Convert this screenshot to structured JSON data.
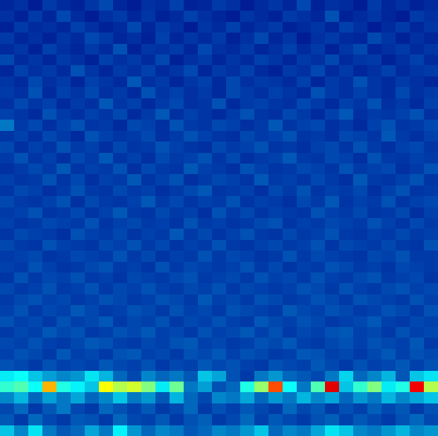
{
  "chart_data": {
    "type": "heatmap",
    "color": "Jet",
    "zlim": [
      0,
      100
    ],
    "tick_labels": false,
    "cells": [
      [
        8,
        10,
        6,
        12,
        9,
        7,
        11,
        14,
        8,
        6,
        10,
        9,
        13,
        7,
        8,
        12,
        10,
        6,
        9,
        11,
        8,
        14,
        7,
        10,
        9,
        6,
        12,
        8,
        10,
        7,
        9
      ],
      [
        10,
        7,
        12,
        8,
        14,
        9,
        6,
        10,
        12,
        8,
        11,
        7,
        9,
        13,
        10,
        8,
        6,
        11,
        9,
        7,
        12,
        10,
        8,
        15,
        7,
        9,
        11,
        8,
        6,
        12,
        10
      ],
      [
        7,
        12,
        9,
        10,
        8,
        13,
        10,
        7,
        9,
        14,
        8,
        12,
        10,
        6,
        11,
        9,
        13,
        8,
        10,
        12,
        7,
        9,
        11,
        8,
        13,
        10,
        6,
        9,
        12,
        8,
        11
      ],
      [
        12,
        8,
        10,
        7,
        11,
        9,
        14,
        12,
        8,
        10,
        7,
        13,
        8,
        11,
        9,
        12,
        7,
        10,
        14,
        8,
        11,
        6,
        10,
        12,
        9,
        8,
        14,
        11,
        7,
        10,
        8
      ],
      [
        9,
        11,
        7,
        13,
        10,
        8,
        12,
        9,
        15,
        7,
        11,
        10,
        12,
        8,
        14,
        10,
        9,
        12,
        8,
        10,
        13,
        9,
        12,
        7,
        11,
        14,
        8,
        10,
        12,
        9,
        11
      ],
      [
        14,
        9,
        11,
        8,
        12,
        10,
        7,
        13,
        10,
        12,
        9,
        14,
        7,
        10,
        12,
        8,
        11,
        9,
        13,
        11,
        8,
        12,
        10,
        14,
        9,
        11,
        12,
        7,
        10,
        13,
        9
      ],
      [
        8,
        13,
        10,
        12,
        9,
        15,
        11,
        8,
        12,
        10,
        13,
        9,
        11,
        14,
        8,
        12,
        10,
        13,
        9,
        7,
        12,
        10,
        14,
        9,
        12,
        8,
        10,
        13,
        9,
        11,
        12
      ],
      [
        11,
        9,
        14,
        10,
        12,
        8,
        13,
        11,
        9,
        16,
        10,
        12,
        8,
        11,
        13,
        9,
        14,
        10,
        12,
        11,
        9,
        13,
        8,
        12,
        10,
        15,
        11,
        9,
        12,
        10,
        8
      ],
      [
        12,
        10,
        15,
        9,
        13,
        11,
        14,
        10,
        12,
        9,
        15,
        11,
        13,
        10,
        12,
        9,
        14,
        12,
        10,
        13,
        11,
        9,
        15,
        12,
        10,
        13,
        11,
        9,
        14,
        10,
        12
      ],
      [
        10,
        14,
        11,
        13,
        9,
        12,
        10,
        16,
        11,
        13,
        9,
        12,
        14,
        10,
        11,
        15,
        9,
        12,
        13,
        11,
        10,
        14,
        12,
        9,
        13,
        11,
        15,
        10,
        12,
        9,
        13
      ],
      [
        13,
        11,
        9,
        15,
        12,
        10,
        13,
        11,
        14,
        9,
        12,
        16,
        10,
        13,
        11,
        9,
        12,
        15,
        11,
        10,
        14,
        12,
        9,
        13,
        16,
        10,
        12,
        11,
        13,
        15,
        10
      ],
      [
        20,
        12,
        14,
        10,
        13,
        15,
        11,
        12,
        9,
        14,
        13,
        10,
        15,
        12,
        11,
        14,
        13,
        10,
        12,
        16,
        11,
        13,
        14,
        10,
        12,
        9,
        13,
        15,
        11,
        12,
        14
      ],
      [
        11,
        13,
        10,
        14,
        12,
        9,
        15,
        13,
        11,
        12,
        14,
        10,
        12,
        15,
        13,
        11,
        10,
        14,
        12,
        13,
        15,
        11,
        12,
        10,
        14,
        13,
        11,
        16,
        12,
        10,
        13
      ],
      [
        14,
        10,
        13,
        11,
        15,
        12,
        13,
        10,
        14,
        11,
        12,
        15,
        13,
        11,
        10,
        14,
        12,
        13,
        15,
        11,
        12,
        10,
        13,
        14,
        11,
        15,
        12,
        10,
        13,
        14,
        11
      ],
      [
        12,
        15,
        11,
        13,
        10,
        14,
        12,
        16,
        11,
        13,
        10,
        14,
        12,
        13,
        15,
        11,
        14,
        10,
        12,
        13,
        16,
        12,
        11,
        14,
        13,
        10,
        15,
        12,
        11,
        13,
        12
      ],
      [
        10,
        12,
        14,
        12,
        16,
        11,
        13,
        12,
        15,
        10,
        14,
        12,
        11,
        16,
        13,
        12,
        10,
        15,
        13,
        11,
        12,
        14,
        13,
        11,
        15,
        12,
        13,
        14,
        10,
        12,
        15
      ],
      [
        13,
        11,
        12,
        15,
        11,
        14,
        10,
        13,
        12,
        16,
        11,
        13,
        15,
        10,
        12,
        14,
        13,
        11,
        16,
        12,
        13,
        11,
        14,
        12,
        10,
        16,
        12,
        11,
        13,
        15,
        11
      ],
      [
        11,
        14,
        13,
        10,
        12,
        15,
        12,
        11,
        14,
        12,
        13,
        10,
        12,
        14,
        16,
        11,
        12,
        13,
        10,
        14,
        12,
        15,
        11,
        13,
        12,
        14,
        10,
        13,
        15,
        11,
        12
      ],
      [
        14,
        12,
        11,
        13,
        15,
        10,
        14,
        12,
        11,
        13,
        16,
        12,
        14,
        11,
        13,
        12,
        15,
        11,
        13,
        12,
        10,
        14,
        12,
        16,
        11,
        13,
        12,
        15,
        11,
        13,
        14
      ],
      [
        12,
        13,
        15,
        11,
        12,
        14,
        11,
        13,
        16,
        12,
        11,
        14,
        12,
        13,
        10,
        15,
        12,
        14,
        11,
        13,
        12,
        11,
        15,
        13,
        12,
        14,
        11,
        12,
        14,
        10,
        13
      ],
      [
        13,
        11,
        12,
        14,
        13,
        12,
        15,
        11,
        13,
        14,
        12,
        13,
        11,
        15,
        12,
        13,
        11,
        12,
        14,
        15,
        11,
        13,
        12,
        14,
        13,
        12,
        15,
        13,
        11,
        14,
        12
      ],
      [
        11,
        14,
        13,
        12,
        10,
        15,
        13,
        12,
        14,
        11,
        13,
        12,
        16,
        12,
        14,
        11,
        13,
        15,
        12,
        11,
        14,
        12,
        13,
        15,
        12,
        11,
        13,
        12,
        14,
        12,
        13
      ],
      [
        14,
        12,
        11,
        15,
        13,
        12,
        11,
        14,
        13,
        15,
        12,
        14,
        11,
        13,
        12,
        15,
        12,
        11,
        13,
        14,
        12,
        13,
        15,
        11,
        14,
        13,
        12,
        14,
        12,
        11,
        15
      ],
      [
        12,
        13,
        14,
        11,
        12,
        14,
        13,
        12,
        15,
        12,
        14,
        11,
        13,
        12,
        15,
        12,
        14,
        13,
        11,
        12,
        15,
        12,
        14,
        13,
        12,
        11,
        14,
        13,
        15,
        12,
        12
      ],
      [
        13,
        12,
        15,
        13,
        11,
        12,
        14,
        15,
        12,
        13,
        11,
        15,
        12,
        14,
        13,
        12,
        13,
        15,
        12,
        14,
        11,
        13,
        12,
        15,
        14,
        12,
        13,
        11,
        14,
        13,
        12
      ],
      [
        11,
        15,
        12,
        14,
        13,
        15,
        12,
        13,
        11,
        14,
        13,
        12,
        14,
        15,
        12,
        13,
        14,
        12,
        15,
        13,
        14,
        12,
        15,
        13,
        12,
        14,
        15,
        12,
        13,
        14,
        11
      ],
      [
        14,
        12,
        13,
        15,
        12,
        13,
        15,
        12,
        14,
        13,
        15,
        13,
        12,
        14,
        13,
        15,
        12,
        14,
        13,
        12,
        13,
        15,
        14,
        12,
        15,
        13,
        12,
        14,
        15,
        13,
        14
      ],
      [
        12,
        14,
        15,
        13,
        14,
        12,
        13,
        15,
        14,
        12,
        13,
        15,
        14,
        12,
        16,
        13,
        14,
        12,
        15,
        14,
        12,
        13,
        15,
        14,
        12,
        15,
        14,
        13,
        12,
        15,
        13
      ],
      [
        13,
        15,
        12,
        14,
        13,
        16,
        14,
        12,
        13,
        15,
        14,
        12,
        15,
        13,
        14,
        12,
        15,
        14,
        13,
        12,
        16,
        14,
        13,
        15,
        14,
        12,
        13,
        15,
        14,
        12,
        15
      ],
      [
        15,
        13,
        14,
        12,
        15,
        13,
        14,
        16,
        12,
        14,
        13,
        15,
        12,
        14,
        13,
        15,
        13,
        12,
        16,
        14,
        13,
        15,
        14,
        12,
        13,
        14,
        16,
        13,
        12,
        14,
        13
      ],
      [
        12,
        14,
        13,
        16,
        14,
        15,
        12,
        13,
        15,
        14,
        16,
        13,
        14,
        12,
        15,
        13,
        14,
        16,
        13,
        15,
        12,
        14,
        13,
        15,
        16,
        13,
        14,
        12,
        15,
        13,
        14
      ],
      [
        14,
        13,
        15,
        13,
        12,
        14,
        16,
        15,
        13,
        12,
        14,
        13,
        15,
        16,
        13,
        14,
        12,
        13,
        15,
        14,
        16,
        13,
        12,
        14,
        15,
        13,
        15,
        14,
        13,
        16,
        12
      ],
      [
        13,
        15,
        14,
        12,
        16,
        13,
        14,
        12,
        15,
        16,
        13,
        14,
        12,
        15,
        14,
        16,
        13,
        15,
        14,
        12,
        13,
        16,
        15,
        13,
        14,
        12,
        14,
        16,
        13,
        15,
        14
      ],
      [
        15,
        14,
        12,
        15,
        13,
        14,
        13,
        16,
        14,
        13,
        15,
        12,
        14,
        13,
        16,
        14,
        15,
        13,
        12,
        15,
        14,
        13,
        16,
        14,
        12,
        15,
        13,
        14,
        16,
        13,
        15
      ],
      [
        35,
        38,
        30,
        25,
        22,
        24,
        34,
        28,
        18,
        14,
        22,
        18,
        20,
        16,
        30,
        26,
        15,
        12,
        20,
        24,
        18,
        16,
        14,
        20,
        32,
        18,
        22,
        28,
        16,
        30,
        34
      ],
      [
        42,
        45,
        38,
        70,
        40,
        36,
        30,
        62,
        55,
        58,
        50,
        35,
        48,
        20,
        25,
        15,
        18,
        40,
        52,
        80,
        38,
        20,
        45,
        90,
        30,
        42,
        50,
        35,
        40,
        88,
        55
      ],
      [
        22,
        28,
        18,
        25,
        20,
        26,
        18,
        22,
        30,
        20,
        24,
        16,
        28,
        18,
        14,
        22,
        20,
        26,
        18,
        24,
        20,
        28,
        22,
        26,
        18,
        24,
        20,
        28,
        22,
        26,
        30
      ],
      [
        14,
        18,
        12,
        16,
        20,
        14,
        12,
        18,
        15,
        13,
        16,
        12,
        14,
        18,
        12,
        15,
        13,
        16,
        14,
        12,
        18,
        14,
        16,
        12,
        15,
        13,
        17,
        14,
        16,
        12,
        15
      ],
      [
        16,
        12,
        18,
        14,
        12,
        16,
        15,
        12,
        18,
        14,
        13,
        16,
        12,
        15,
        17,
        12,
        14,
        18,
        13,
        16,
        14,
        12,
        15,
        17,
        13,
        16,
        14,
        12,
        15,
        18,
        14
      ],
      [
        30,
        22,
        34,
        20,
        16,
        18,
        26,
        20,
        36,
        24,
        18,
        22,
        20,
        16,
        18,
        22,
        20,
        24,
        30,
        18,
        22,
        20,
        26,
        34,
        30,
        22,
        20,
        24,
        28,
        22,
        24
      ]
    ]
  }
}
